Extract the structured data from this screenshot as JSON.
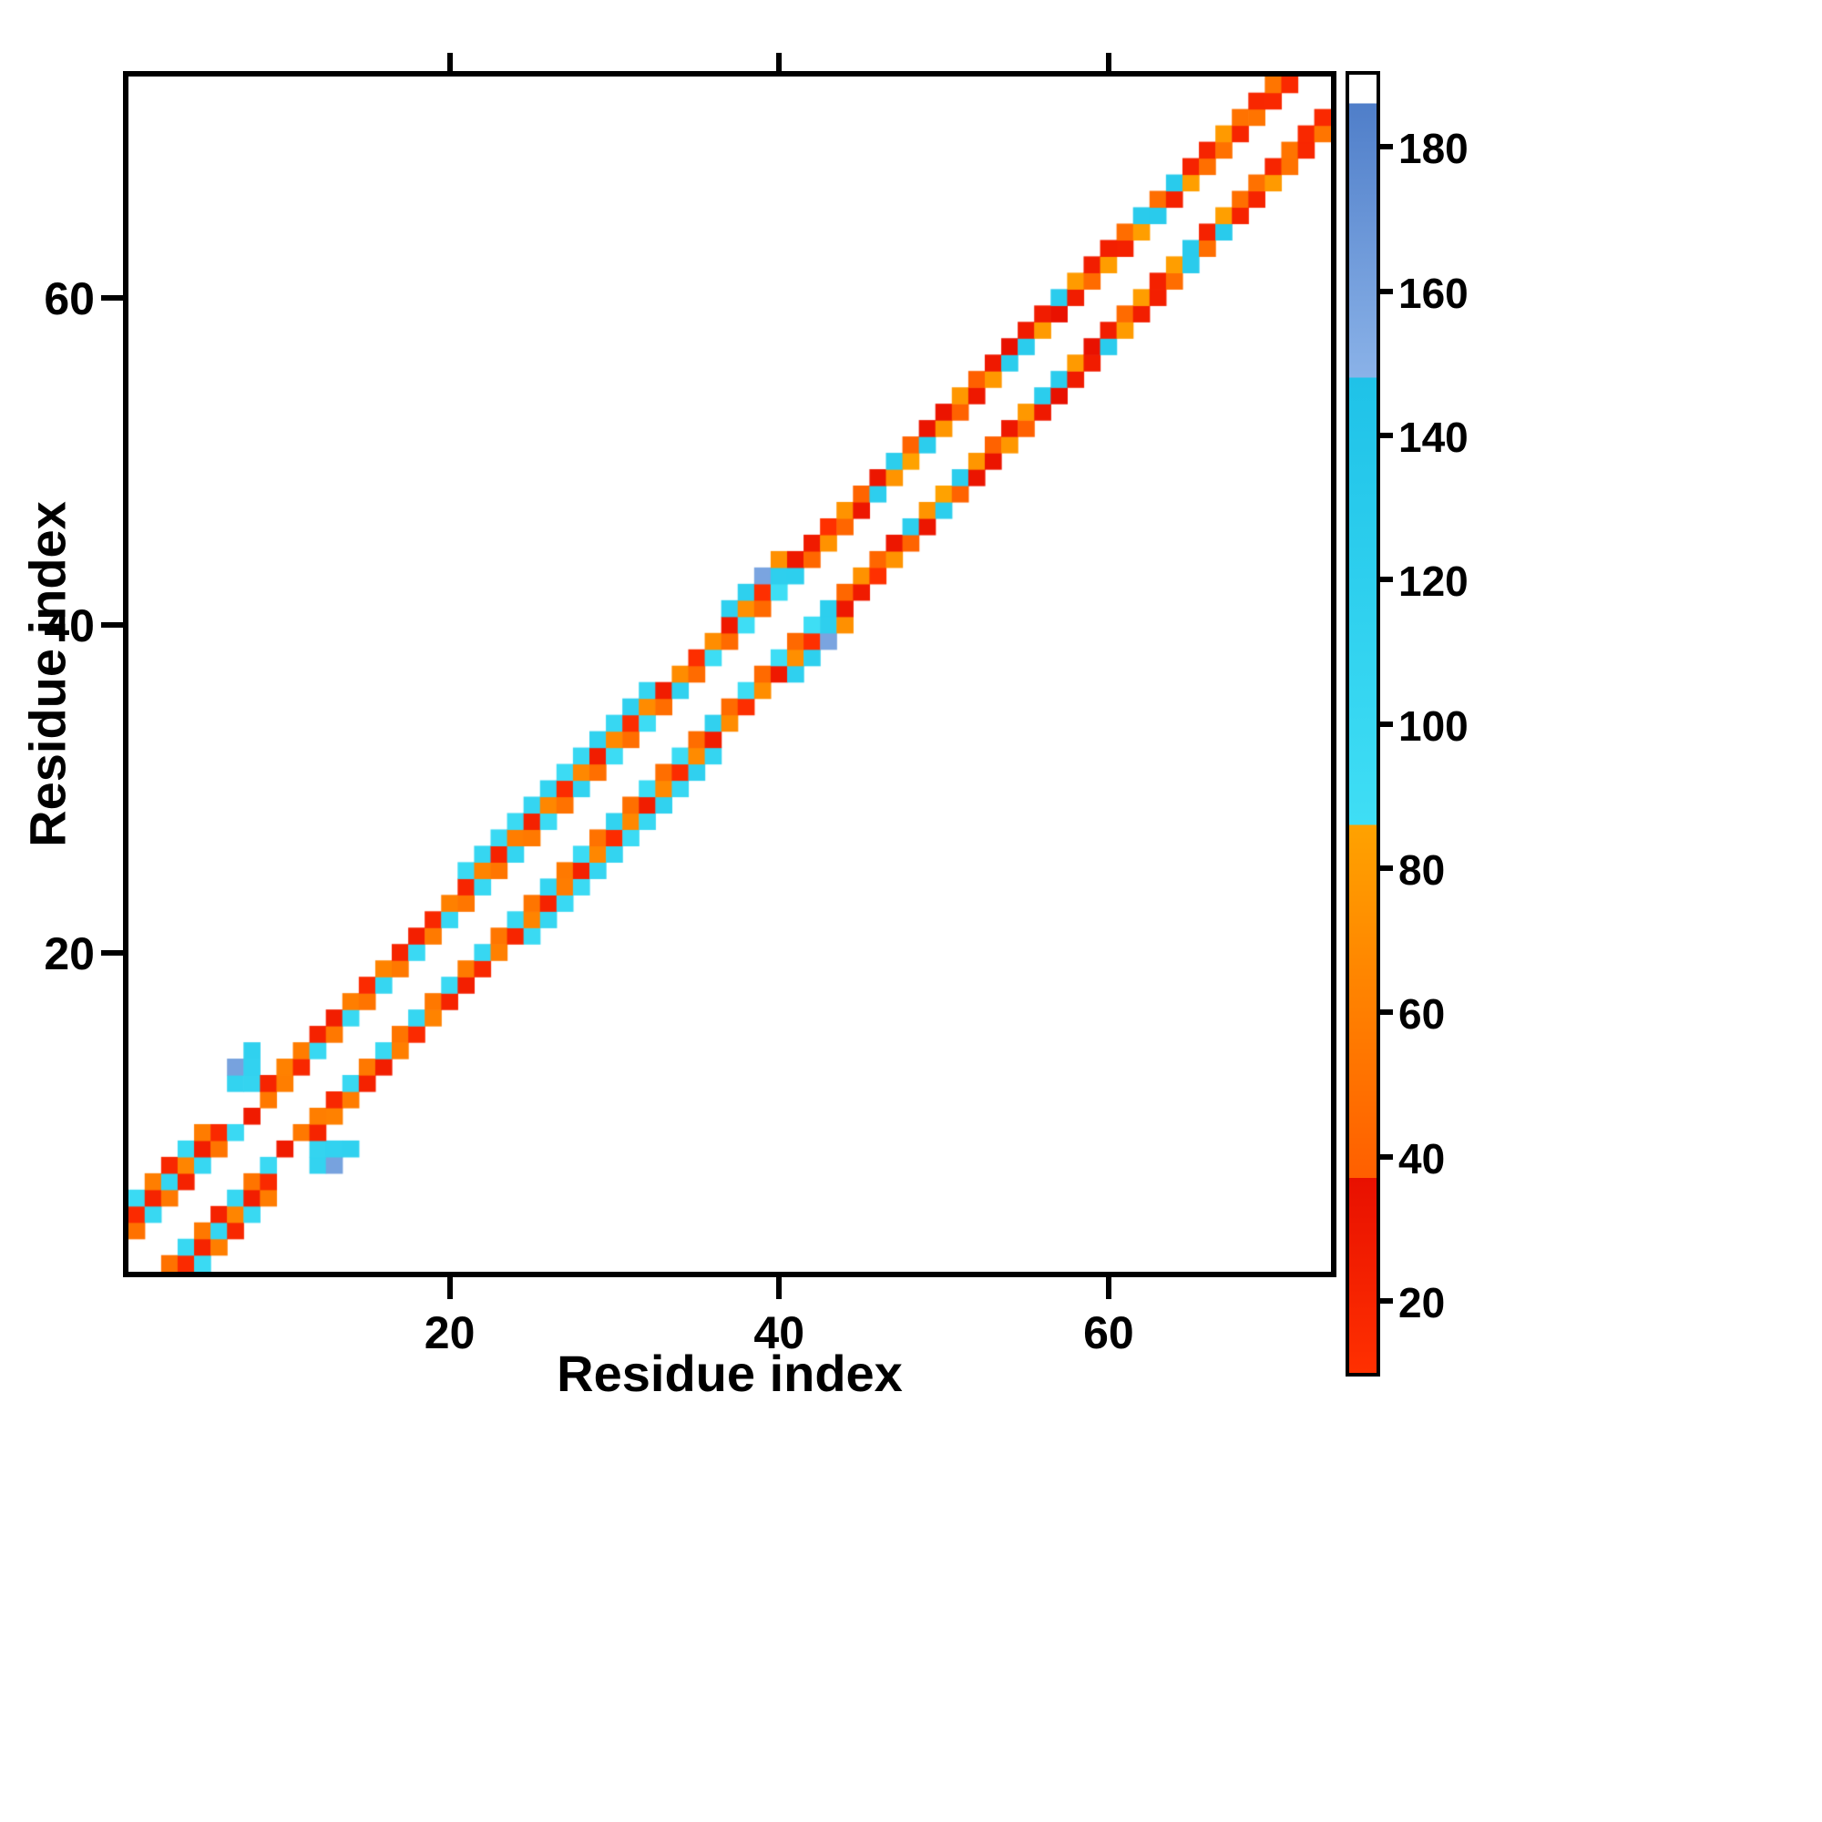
{
  "chart_data": {
    "type": "heatmap",
    "title": "",
    "xlabel": "Residue index",
    "ylabel": "Residue index",
    "x_ticks": [
      20,
      40,
      60
    ],
    "y_ticks": [
      20,
      40,
      60
    ],
    "x_range": [
      0.5,
      73.5
    ],
    "y_range": [
      0.5,
      73.5
    ],
    "symmetric": true,
    "grid": false,
    "background_color": "#ffffff",
    "colorbar": {
      "range": [
        10,
        190
      ],
      "ticks": [
        20,
        40,
        60,
        80,
        100,
        120,
        140,
        160,
        180
      ],
      "segments": [
        {
          "from": 10,
          "to": 37,
          "c_low": "#ff3000",
          "c_high": "#e81000"
        },
        {
          "from": 37,
          "to": 86,
          "c_low": "#ff5f00",
          "c_high": "#ffa200"
        },
        {
          "from": 86,
          "to": 148,
          "c_low": "#3fdef5",
          "c_high": "#1fc2e8"
        },
        {
          "from": 148,
          "to": 186,
          "c_low": "#8ab2e8",
          "c_high": "#4f7ec9"
        },
        {
          "from": 186,
          "to": 190,
          "c_low": "#ffffff",
          "c_high": "#ffffff"
        }
      ]
    },
    "cells": [
      [
        1,
        3,
        50
      ],
      [
        1,
        4,
        15
      ],
      [
        1,
        5,
        95
      ],
      [
        2,
        4,
        100
      ],
      [
        2,
        5,
        20
      ],
      [
        2,
        6,
        60
      ],
      [
        3,
        5,
        55
      ],
      [
        3,
        6,
        105
      ],
      [
        3,
        7,
        18
      ],
      [
        4,
        6,
        22
      ],
      [
        4,
        7,
        65
      ],
      [
        4,
        8,
        98
      ],
      [
        5,
        7,
        102
      ],
      [
        5,
        8,
        25
      ],
      [
        5,
        9,
        58
      ],
      [
        6,
        8,
        52
      ],
      [
        6,
        9,
        16
      ],
      [
        7,
        9,
        96
      ],
      [
        7,
        12,
        110
      ],
      [
        7,
        13,
        160
      ],
      [
        8,
        10,
        28
      ],
      [
        8,
        12,
        108
      ],
      [
        8,
        13,
        112
      ],
      [
        8,
        14,
        115
      ],
      [
        9,
        11,
        55
      ],
      [
        9,
        12,
        20
      ],
      [
        10,
        12,
        60
      ],
      [
        10,
        13,
        62
      ],
      [
        11,
        13,
        18
      ],
      [
        11,
        14,
        58
      ],
      [
        12,
        14,
        100
      ],
      [
        12,
        15,
        22
      ],
      [
        13,
        15,
        55
      ],
      [
        13,
        16,
        25
      ],
      [
        14,
        16,
        98
      ],
      [
        14,
        17,
        60
      ],
      [
        15,
        17,
        52
      ],
      [
        15,
        18,
        15
      ],
      [
        16,
        18,
        104
      ],
      [
        16,
        19,
        63
      ],
      [
        17,
        19,
        55
      ],
      [
        17,
        20,
        20
      ],
      [
        18,
        20,
        96
      ],
      [
        18,
        21,
        24
      ],
      [
        19,
        21,
        57
      ],
      [
        19,
        22,
        17
      ],
      [
        20,
        22,
        101
      ],
      [
        20,
        23,
        61
      ],
      [
        21,
        23,
        54
      ],
      [
        21,
        24,
        19
      ],
      [
        21,
        25,
        95
      ],
      [
        22,
        24,
        99
      ],
      [
        22,
        25,
        64
      ],
      [
        22,
        26,
        103
      ],
      [
        23,
        25,
        53
      ],
      [
        23,
        26,
        21
      ],
      [
        23,
        27,
        97
      ],
      [
        24,
        26,
        107
      ],
      [
        24,
        27,
        59
      ],
      [
        24,
        28,
        94
      ],
      [
        25,
        27,
        56
      ],
      [
        25,
        28,
        23
      ],
      [
        25,
        29,
        106
      ],
      [
        26,
        28,
        93
      ],
      [
        26,
        29,
        66
      ],
      [
        26,
        30,
        109
      ],
      [
        27,
        29,
        51
      ],
      [
        27,
        30,
        14
      ],
      [
        27,
        31,
        92
      ],
      [
        28,
        30,
        111
      ],
      [
        28,
        31,
        67
      ],
      [
        28,
        32,
        99
      ],
      [
        29,
        31,
        49
      ],
      [
        29,
        32,
        26
      ],
      [
        29,
        33,
        113
      ],
      [
        30,
        32,
        91
      ],
      [
        30,
        33,
        68
      ],
      [
        30,
        34,
        102
      ],
      [
        31,
        33,
        48
      ],
      [
        31,
        34,
        13
      ],
      [
        31,
        35,
        116
      ],
      [
        32,
        34,
        90
      ],
      [
        32,
        35,
        69
      ],
      [
        32,
        36,
        105
      ],
      [
        33,
        35,
        47
      ],
      [
        33,
        36,
        27
      ],
      [
        34,
        36,
        114
      ],
      [
        34,
        37,
        70
      ],
      [
        35,
        37,
        46
      ],
      [
        35,
        38,
        12
      ],
      [
        36,
        38,
        89
      ],
      [
        36,
        39,
        71
      ],
      [
        37,
        39,
        45
      ],
      [
        37,
        40,
        29
      ],
      [
        37,
        41,
        117
      ],
      [
        38,
        40,
        88
      ],
      [
        38,
        41,
        72
      ],
      [
        38,
        42,
        118
      ],
      [
        39,
        41,
        44
      ],
      [
        39,
        42,
        11
      ],
      [
        39,
        43,
        158
      ],
      [
        40,
        42,
        87
      ],
      [
        40,
        43,
        119
      ],
      [
        40,
        44,
        73
      ],
      [
        41,
        43,
        120
      ],
      [
        41,
        44,
        30
      ],
      [
        42,
        44,
        43
      ],
      [
        42,
        45,
        28
      ],
      [
        43,
        45,
        74
      ],
      [
        43,
        46,
        10
      ],
      [
        44,
        46,
        42
      ],
      [
        44,
        47,
        75
      ],
      [
        45,
        47,
        31
      ],
      [
        45,
        48,
        41
      ],
      [
        46,
        48,
        121
      ],
      [
        46,
        49,
        32
      ],
      [
        47,
        49,
        76
      ],
      [
        47,
        50,
        122
      ],
      [
        48,
        50,
        86
      ],
      [
        48,
        51,
        40
      ],
      [
        49,
        51,
        123
      ],
      [
        49,
        52,
        33
      ],
      [
        50,
        52,
        77
      ],
      [
        50,
        53,
        34
      ],
      [
        51,
        53,
        39
      ],
      [
        51,
        54,
        78
      ],
      [
        52,
        54,
        30
      ],
      [
        52,
        55,
        38
      ],
      [
        53,
        55,
        79
      ],
      [
        53,
        56,
        29
      ],
      [
        54,
        56,
        124
      ],
      [
        54,
        57,
        37
      ],
      [
        55,
        57,
        125
      ],
      [
        55,
        58,
        28
      ],
      [
        56,
        58,
        80
      ],
      [
        56,
        59,
        27
      ],
      [
        57,
        59,
        36
      ],
      [
        57,
        60,
        126
      ],
      [
        58,
        60,
        26
      ],
      [
        58,
        61,
        81
      ],
      [
        59,
        61,
        46
      ],
      [
        59,
        62,
        25
      ],
      [
        60,
        62,
        82
      ],
      [
        60,
        63,
        24
      ],
      [
        61,
        63,
        23
      ],
      [
        61,
        64,
        47
      ],
      [
        62,
        64,
        83
      ],
      [
        62,
        65,
        127
      ],
      [
        63,
        65,
        128
      ],
      [
        63,
        66,
        48
      ],
      [
        64,
        66,
        22
      ],
      [
        64,
        67,
        129
      ],
      [
        65,
        67,
        84
      ],
      [
        65,
        68,
        21
      ],
      [
        66,
        68,
        49
      ],
      [
        66,
        69,
        20
      ],
      [
        67,
        69,
        50
      ],
      [
        67,
        70,
        80
      ],
      [
        68,
        70,
        19
      ],
      [
        68,
        71,
        51
      ],
      [
        69,
        71,
        52
      ],
      [
        69,
        72,
        18
      ],
      [
        70,
        72,
        17
      ],
      [
        70,
        73,
        53
      ],
      [
        71,
        73,
        16
      ]
    ]
  }
}
